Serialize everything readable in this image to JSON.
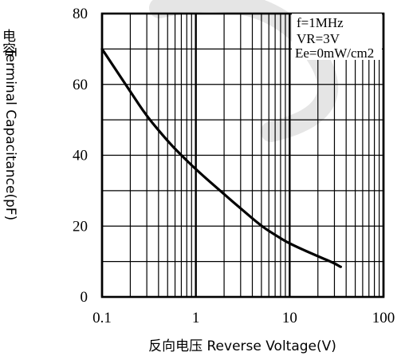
{
  "chart_data": {
    "type": "line",
    "xscale": "log",
    "xlim": [
      0.1,
      100
    ],
    "ylim": [
      0,
      80
    ],
    "xticks": [
      0.1,
      1,
      10,
      100
    ],
    "yticks": [
      0,
      20,
      40,
      60,
      80
    ],
    "xtick_labels": [
      "0.1",
      "1",
      "10",
      "100"
    ],
    "ytick_labels": [
      "0",
      "20",
      "40",
      "60",
      "80"
    ],
    "grid": true,
    "xlabel": "反向电压 Reverse Voltage(V)",
    "ylabel_cn": "电容",
    "ylabel": "Terminal Capacitance(pF)",
    "conditions": [
      "f=1MHz",
      "VR=3V",
      "Ee=0mW/cm2"
    ],
    "conditions_position": "top-right",
    "series": [
      {
        "x": [
          0.1,
          0.2,
          0.3,
          0.5,
          0.7,
          1,
          2,
          3,
          5,
          7,
          10,
          20,
          30,
          35
        ],
        "y": [
          70,
          58,
          51,
          44,
          40,
          36,
          29,
          25,
          20,
          17.5,
          15,
          11.5,
          9.5,
          8.5
        ]
      }
    ]
  }
}
